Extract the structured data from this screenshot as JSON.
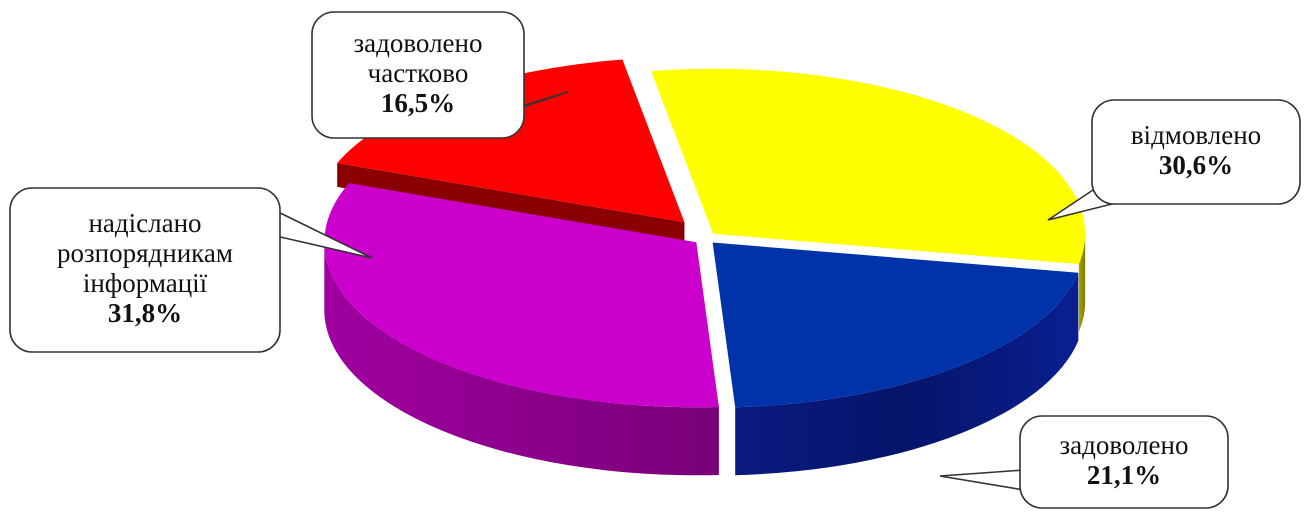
{
  "chart_data": {
    "type": "pie",
    "title": "",
    "series": [
      {
        "name": "",
        "values": [
          {
            "label": "задоволено частково",
            "label_lines": [
              "задоволено",
              "частково"
            ],
            "value": 16.5,
            "value_label": "16,5%",
            "color": "#ff0000"
          },
          {
            "label": "відмовлено",
            "label_lines": [
              "відмовлено"
            ],
            "value": 30.6,
            "value_label": "30,6%",
            "color": "#ffff00"
          },
          {
            "label": "задоволено",
            "label_lines": [
              "задоволено"
            ],
            "value": 21.1,
            "value_label": "21,1%",
            "color": "#0033aa"
          },
          {
            "label": "надіслано розпорядникам інформації",
            "label_lines": [
              "надіслано",
              "розпорядникам",
              "інформації"
            ],
            "value": 31.8,
            "value_label": "31,8%",
            "color": "#cc00cc"
          }
        ]
      }
    ],
    "style": "3d-exploded",
    "legend": "none"
  }
}
